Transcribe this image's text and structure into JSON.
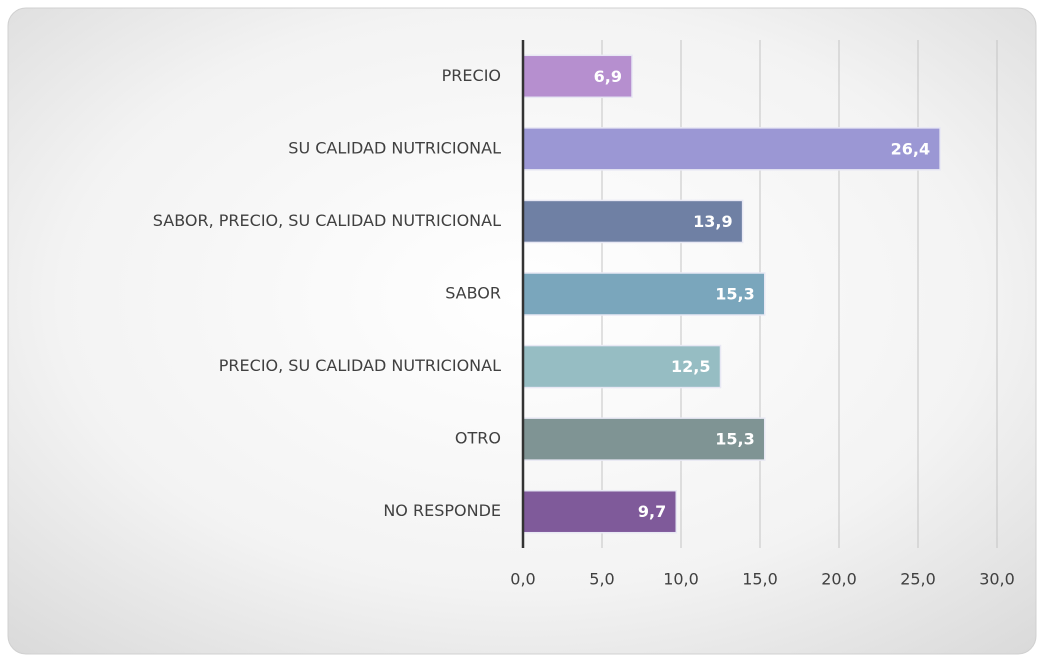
{
  "chart_data": {
    "type": "barh",
    "categories": [
      "PRECIO",
      "SU CALIDAD NUTRICIONAL",
      "SABOR, PRECIO, SU CALIDAD NUTRICIONAL",
      "SABOR",
      "PRECIO, SU CALIDAD NUTRICIONAL",
      "OTRO",
      "NO RESPONDE"
    ],
    "values": [
      6.9,
      26.4,
      13.9,
      15.3,
      12.5,
      15.3,
      9.7
    ],
    "value_labels": [
      "6,9",
      "26,4",
      "13,9",
      "15,3",
      "12,5",
      "15,3",
      "9,7"
    ],
    "colors": [
      "#b68fcf",
      "#9b97d4",
      "#6f80a4",
      "#7aa6bc",
      "#96bdc3",
      "#7f9494",
      "#7f5a9a"
    ],
    "xlim": [
      0,
      30
    ],
    "xticks": [
      {
        "value": 0,
        "label": "0,0"
      },
      {
        "value": 5,
        "label": "5,0"
      },
      {
        "value": 10,
        "label": "10,0"
      },
      {
        "value": 15,
        "label": "15,0"
      },
      {
        "value": 20,
        "label": "20,0"
      },
      {
        "value": 25,
        "label": "25,0"
      },
      {
        "value": 30,
        "label": "30,0"
      }
    ],
    "grid": true
  }
}
